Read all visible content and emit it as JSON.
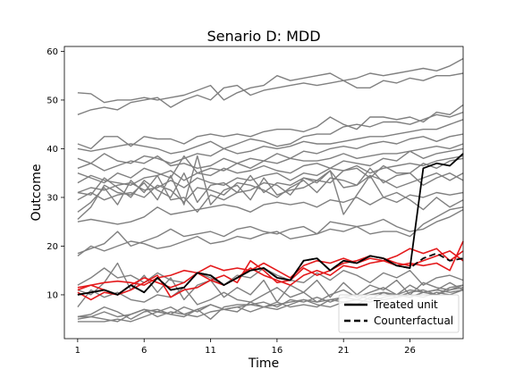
{
  "chart_data": {
    "type": "line",
    "title": "Senario D: MDD",
    "xlabel": "Time",
    "ylabel": "Outcome",
    "xlim": [
      0,
      30
    ],
    "ylim": [
      1,
      61
    ],
    "xticks": [
      1,
      6,
      11,
      16,
      21,
      26
    ],
    "yticks": [
      10,
      20,
      30,
      40,
      50,
      60
    ],
    "grid": false,
    "legend_position": "bottom-right",
    "colors": {
      "control": "#808080",
      "treated": "#000000",
      "counterfactual": "#000000",
      "highlight": "#e41a1c"
    },
    "control_series": [
      {
        "values": [
          51.5,
          51.3,
          49.5,
          50.0,
          50.0,
          50.5,
          50.0,
          50.5,
          51.0,
          52.0,
          53.0,
          50.0,
          51.5,
          52.5,
          53.0,
          55.0,
          54.0,
          54.5,
          55.0,
          55.5,
          54.0,
          54.5,
          55.5,
          55.0,
          55.5,
          56.0,
          56.5,
          56.0,
          57.0,
          58.5
        ]
      },
      {
        "values": [
          47.0,
          48.0,
          48.5,
          48.0,
          49.5,
          50.0,
          50.5,
          48.5,
          50.0,
          51.0,
          50.0,
          52.5,
          53.0,
          51.0,
          52.0,
          52.5,
          53.0,
          53.5,
          53.0,
          53.5,
          54.0,
          52.5,
          52.5,
          54.0,
          53.5,
          54.5,
          54.0,
          55.0,
          55.0,
          55.5
        ]
      },
      {
        "values": [
          41.0,
          40.0,
          42.5,
          42.5,
          40.5,
          42.5,
          42.0,
          42.0,
          41.0,
          42.5,
          43.0,
          42.5,
          43.0,
          42.5,
          43.5,
          44.0,
          44.0,
          43.5,
          44.5,
          46.5,
          45.0,
          44.0,
          46.5,
          46.5,
          46.0,
          46.5,
          45.5,
          47.5,
          47.0,
          49.0
        ]
      },
      {
        "values": [
          40.0,
          39.5,
          40.0,
          40.5,
          41.0,
          40.5,
          40.0,
          39.0,
          39.5,
          40.5,
          41.5,
          40.0,
          41.0,
          42.0,
          41.5,
          40.5,
          41.0,
          42.5,
          43.0,
          43.0,
          44.5,
          45.0,
          44.5,
          45.5,
          45.5,
          45.0,
          46.0,
          47.0,
          46.5,
          47.5
        ]
      },
      {
        "values": [
          38.0,
          37.0,
          39.0,
          37.5,
          37.0,
          38.5,
          38.0,
          37.0,
          38.0,
          39.0,
          38.5,
          40.0,
          39.0,
          39.5,
          40.5,
          40.0,
          40.5,
          41.5,
          41.0,
          41.0,
          41.5,
          42.0,
          42.5,
          42.5,
          43.0,
          43.5,
          44.0,
          44.0,
          45.0,
          46.0
        ]
      },
      {
        "values": [
          36.0,
          37.0,
          35.5,
          36.5,
          37.5,
          37.0,
          38.5,
          36.5,
          37.0,
          36.0,
          36.5,
          38.0,
          37.0,
          38.0,
          37.5,
          39.0,
          38.0,
          39.5,
          39.0,
          40.0,
          40.5,
          40.0,
          41.0,
          41.5,
          41.0,
          42.0,
          42.5,
          41.5,
          42.5,
          43.0
        ]
      },
      {
        "values": [
          35.0,
          34.0,
          33.0,
          35.0,
          34.0,
          36.0,
          35.0,
          34.0,
          38.5,
          35.0,
          36.0,
          35.5,
          37.0,
          36.0,
          37.5,
          37.0,
          38.0,
          37.5,
          37.5,
          38.0,
          39.0,
          38.0,
          38.5,
          39.0,
          39.0,
          39.5,
          40.0,
          40.5,
          40.0,
          41.0
        ]
      },
      {
        "values": [
          33.0,
          34.5,
          33.5,
          33.0,
          32.5,
          34.0,
          34.5,
          35.5,
          33.5,
          35.0,
          34.5,
          36.0,
          35.0,
          35.5,
          36.5,
          35.5,
          35.0,
          36.5,
          37.0,
          36.0,
          37.5,
          37.0,
          36.5,
          38.0,
          37.5,
          39.5,
          38.0,
          39.0,
          39.5,
          40.0
        ]
      },
      {
        "values": [
          31.0,
          32.0,
          31.5,
          32.5,
          33.0,
          31.5,
          32.0,
          33.5,
          32.0,
          34.0,
          33.0,
          32.5,
          34.0,
          33.5,
          34.5,
          35.0,
          33.5,
          35.0,
          34.5,
          36.0,
          35.5,
          36.5,
          35.0,
          36.0,
          36.5,
          37.0,
          36.5,
          37.5,
          38.0,
          38.5
        ]
      },
      {
        "values": [
          31.0,
          30.5,
          34.0,
          32.0,
          30.0,
          33.5,
          31.5,
          30.0,
          35.0,
          29.0,
          32.5,
          33.0,
          31.0,
          34.5,
          31.0,
          33.0,
          32.5,
          34.0,
          33.5,
          33.0,
          35.5,
          36.0,
          34.0,
          36.5,
          35.0,
          35.0,
          37.0,
          36.0,
          37.5,
          38.0
        ]
      },
      {
        "values": [
          29.5,
          31.0,
          29.5,
          30.5,
          31.0,
          30.0,
          32.5,
          31.5,
          29.0,
          32.0,
          31.5,
          30.5,
          33.0,
          32.5,
          31.5,
          30.0,
          32.0,
          33.5,
          31.0,
          34.0,
          33.5,
          32.5,
          34.5,
          33.5,
          32.0,
          33.0,
          34.0,
          35.0,
          33.5,
          35.0
        ]
      },
      {
        "values": [
          27.0,
          29.0,
          32.0,
          28.5,
          33.5,
          31.0,
          34.5,
          29.5,
          30.0,
          27.0,
          30.5,
          29.5,
          31.0,
          31.5,
          33.0,
          32.5,
          30.5,
          34.0,
          33.0,
          35.5,
          32.0,
          32.5,
          36.0,
          33.0,
          34.5,
          35.0,
          32.5,
          34.0,
          35.0,
          33.5
        ]
      },
      {
        "values": [
          25.5,
          28.0,
          32.5,
          31.0,
          30.5,
          33.0,
          29.5,
          34.5,
          28.5,
          38.5,
          28.5,
          31.5,
          32.5,
          29.5,
          34.0,
          30.5,
          31.5,
          32.0,
          33.5,
          35.5,
          26.5,
          30.5,
          34.5,
          30.0,
          31.0,
          29.5,
          27.5,
          30.0,
          28.0,
          29.5
        ]
      },
      {
        "values": [
          25.0,
          25.5,
          25.0,
          24.5,
          25.0,
          26.0,
          28.0,
          26.5,
          27.0,
          27.5,
          28.0,
          28.5,
          28.0,
          27.0,
          28.5,
          29.0,
          28.5,
          29.0,
          28.0,
          29.5,
          29.0,
          30.0,
          28.5,
          30.0,
          29.0,
          30.5,
          30.0,
          31.0,
          30.5,
          31.0
        ]
      },
      {
        "values": [
          18.5,
          19.5,
          20.5,
          23.0,
          20.0,
          21.0,
          22.0,
          23.5,
          22.0,
          22.5,
          23.0,
          22.0,
          23.5,
          24.0,
          23.0,
          22.5,
          23.5,
          24.0,
          22.5,
          25.0,
          24.5,
          24.0,
          24.5,
          25.5,
          24.0,
          23.0,
          23.5,
          25.0,
          26.0,
          27.5
        ]
      },
      {
        "values": [
          18.0,
          20.0,
          19.0,
          20.0,
          21.0,
          20.5,
          19.5,
          20.0,
          21.0,
          22.0,
          20.5,
          21.0,
          22.0,
          21.5,
          22.5,
          23.0,
          21.5,
          22.0,
          22.5,
          23.5,
          23.0,
          24.0,
          22.5,
          23.0,
          23.0,
          22.0,
          24.5,
          26.0,
          27.5,
          28.0
        ]
      },
      {
        "values": [
          12.0,
          13.5,
          15.5,
          13.5,
          14.0,
          12.5,
          14.5,
          13.0,
          12.5,
          14.5,
          13.5,
          12.0,
          14.0,
          13.5,
          15.5,
          14.0,
          13.0,
          12.5,
          14.5,
          13.0,
          15.0,
          14.0,
          12.5,
          14.5,
          13.5,
          15.0,
          12.0,
          13.5,
          14.0,
          13.0
        ]
      },
      {
        "values": [
          11.0,
          10.0,
          12.5,
          16.5,
          11.0,
          14.0,
          10.5,
          13.5,
          9.0,
          12.0,
          13.0,
          9.5,
          11.5,
          10.0,
          13.0,
          8.5,
          12.0,
          10.5,
          13.0,
          9.5,
          12.5,
          10.0,
          12.0,
          11.0,
          13.0,
          10.0,
          12.5,
          11.5,
          11.0,
          12.0
        ]
      },
      {
        "values": [
          7.5,
          11.0,
          9.5,
          10.5,
          9.0,
          8.5,
          10.0,
          9.5,
          11.5,
          8.0,
          9.0,
          10.5,
          9.0,
          8.5,
          10.0,
          11.5,
          9.5,
          10.5,
          8.5,
          10.0,
          11.0,
          9.5,
          10.5,
          11.5,
          10.0,
          12.0,
          10.5,
          11.0,
          12.5,
          11.0
        ]
      },
      {
        "values": [
          5.5,
          6.0,
          7.5,
          6.5,
          5.0,
          6.5,
          7.0,
          6.0,
          7.5,
          6.5,
          8.0,
          7.0,
          6.5,
          8.5,
          7.5,
          7.0,
          8.0,
          9.0,
          8.0,
          7.5,
          8.5,
          9.0,
          8.5,
          9.5,
          10.0,
          9.5,
          10.5,
          11.0,
          10.5,
          11.0
        ]
      },
      {
        "values": [
          5.0,
          5.5,
          6.5,
          5.5,
          6.0,
          7.0,
          6.5,
          7.5,
          6.0,
          7.0,
          8.0,
          7.0,
          7.5,
          8.0,
          8.5,
          7.5,
          9.0,
          8.5,
          9.5,
          8.5,
          9.5,
          10.0,
          9.0,
          10.5,
          9.5,
          10.5,
          11.0,
          10.0,
          11.5,
          12.0
        ]
      },
      {
        "values": [
          5.5,
          5.5,
          5.0,
          4.5,
          6.0,
          7.0,
          5.5,
          6.5,
          6.0,
          5.5,
          6.5,
          7.0,
          7.5,
          6.5,
          7.5,
          8.5,
          7.5,
          8.0,
          7.5,
          9.0,
          8.5,
          8.0,
          9.5,
          9.0,
          9.5,
          10.0,
          9.5,
          10.5,
          10.0,
          11.0
        ]
      },
      {
        "values": [
          4.5,
          4.5,
          4.5,
          5.0,
          4.5,
          5.5,
          6.5,
          6.0,
          5.5,
          7.0,
          5.0,
          7.5,
          8.0,
          8.0,
          7.5,
          8.0,
          8.5,
          9.0,
          8.5,
          9.0,
          9.5,
          9.0,
          10.0,
          10.5,
          10.0,
          11.0,
          10.5,
          10.0,
          11.0,
          11.5
        ]
      }
    ],
    "highlight_series": [
      {
        "values": [
          11.0,
          12.0,
          12.5,
          12.8,
          12.5,
          12.0,
          13.5,
          14.0,
          15.0,
          14.5,
          16.0,
          15.0,
          15.5,
          15.0,
          16.5,
          15.0,
          13.5,
          16.0,
          17.0,
          16.5,
          17.5,
          16.5,
          17.5,
          17.0,
          16.0,
          16.5,
          16.0,
          16.5,
          15.0,
          21.0
        ]
      },
      {
        "values": [
          10.5,
          9.0,
          10.5,
          10.0,
          11.0,
          12.5,
          14.0,
          9.5,
          11.0,
          11.5,
          13.0,
          12.0,
          13.5,
          15.5,
          14.0,
          13.0,
          12.0,
          14.0,
          15.0,
          14.0,
          16.0,
          15.5,
          16.5,
          17.0,
          18.0,
          19.5,
          18.5,
          19.5,
          17.0,
          19.0
        ]
      },
      {
        "values": [
          11.5,
          12.0,
          11.0,
          10.0,
          12.0,
          13.5,
          12.5,
          11.5,
          12.5,
          14.5,
          13.0,
          14.0,
          12.5,
          17.0,
          15.0,
          12.5,
          13.0,
          15.5,
          14.0,
          15.0,
          16.5,
          17.0,
          18.0,
          17.5,
          16.5,
          16.0,
          17.0,
          18.0,
          19.0,
          17.0
        ]
      }
    ],
    "series": [
      {
        "name": "Treated unit",
        "style": "solid",
        "values": [
          10.0,
          10.5,
          11.0,
          10.0,
          12.0,
          10.5,
          13.5,
          11.0,
          11.5,
          14.5,
          14.0,
          12.0,
          13.5,
          15.0,
          15.5,
          13.5,
          13.0,
          17.0,
          17.5,
          15.0,
          17.0,
          16.5,
          18.0,
          17.5,
          16.0,
          15.5,
          36.0,
          37.0,
          36.5,
          39.0
        ]
      },
      {
        "name": "Counterfactual",
        "style": "dashed",
        "values": [
          10.0,
          10.5,
          11.0,
          10.0,
          12.0,
          10.5,
          13.5,
          11.0,
          11.5,
          14.5,
          14.0,
          12.0,
          13.5,
          15.0,
          15.5,
          13.5,
          13.0,
          17.0,
          17.5,
          15.0,
          17.0,
          16.5,
          18.0,
          17.5,
          16.0,
          15.5,
          17.5,
          18.5,
          17.0,
          17.5
        ]
      }
    ]
  }
}
